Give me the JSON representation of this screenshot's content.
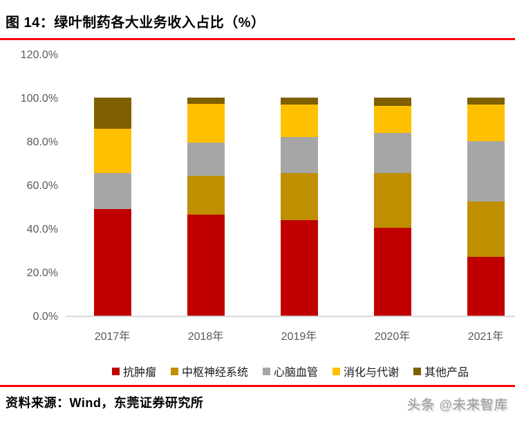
{
  "title": "图 14：绿叶制药各大业务收入占比（%）",
  "source_note": "资料来源：Wind，东莞证券研究所",
  "watermark": "头条 @未来智库",
  "colors": {
    "rule_red": "#fe0000",
    "axis_text": "#595959",
    "baseline_gray": "#d9d9d9",
    "oncology_red": "#c00000",
    "cns_dark_gold": "#bf8f00",
    "cardio_gray": "#a6a6a6",
    "metabolism_yellow": "#ffc000",
    "others_olive": "#7f6000"
  },
  "chart_data": {
    "type": "bar",
    "stacked": true,
    "title": "绿叶制药各大业务收入占比（%）",
    "categories": [
      "2017年",
      "2018年",
      "2019年",
      "2020年",
      "2021年"
    ],
    "series": [
      {
        "key": "oncology",
        "name": "抗肿瘤",
        "color": "#c00000",
        "values": [
          48.8,
          46.3,
          43.9,
          40.3,
          27.0
        ]
      },
      {
        "key": "cns",
        "name": "中枢神经系统",
        "color": "#bf8f00",
        "values": [
          0.0,
          17.8,
          21.4,
          25.2,
          25.4
        ]
      },
      {
        "key": "cardio",
        "name": "心脑血管",
        "color": "#a6a6a6",
        "values": [
          16.6,
          15.2,
          16.5,
          18.2,
          27.5
        ]
      },
      {
        "key": "metabolism",
        "name": "消化与代谢",
        "color": "#ffc000",
        "values": [
          20.3,
          17.8,
          15.0,
          12.6,
          16.9
        ]
      },
      {
        "key": "others",
        "name": "其他产品",
        "color": "#7f6000",
        "values": [
          14.3,
          2.9,
          3.2,
          3.7,
          3.2
        ]
      }
    ],
    "ylim": [
      0,
      120
    ],
    "y_ticks": [
      "0.0%",
      "20.0%",
      "40.0%",
      "60.0%",
      "80.0%",
      "100.0%",
      "120.0%"
    ],
    "xlabel": "",
    "ylabel": "",
    "grid": false,
    "legend_position": "bottom"
  }
}
